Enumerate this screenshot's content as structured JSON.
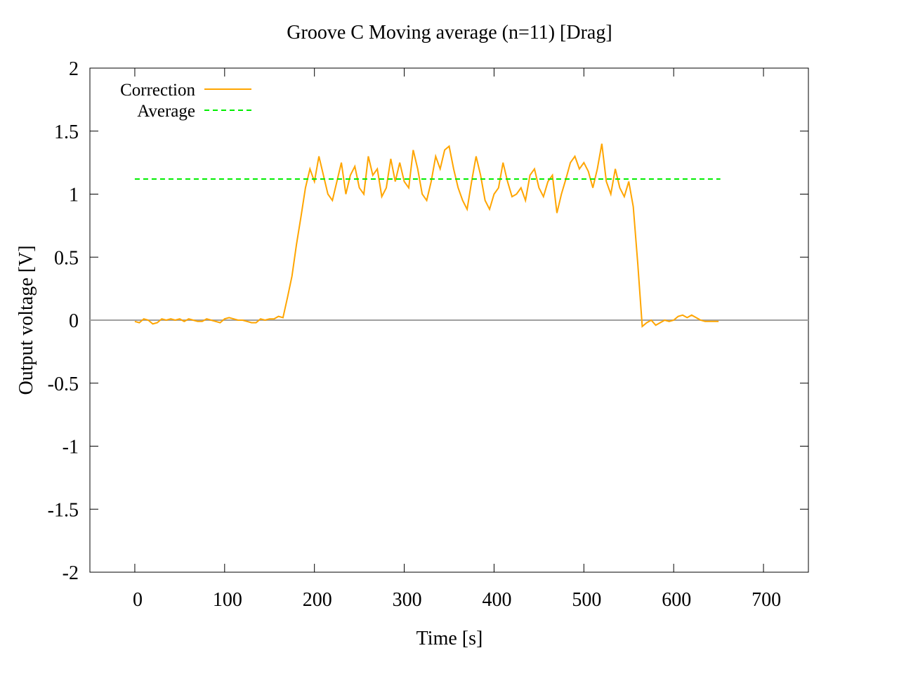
{
  "chart_data": {
    "type": "line",
    "title": "Groove C  Moving average (n=11) [Drag]",
    "xlabel": "Time [s]",
    "ylabel": "Output voltage [V]",
    "xlim": [
      -50,
      750
    ],
    "ylim": [
      -2,
      2
    ],
    "xticks": [
      0,
      100,
      200,
      300,
      400,
      500,
      600,
      700
    ],
    "yticks": [
      -2,
      -1.5,
      -1,
      -0.5,
      0,
      0.5,
      1,
      1.5,
      2
    ],
    "zeroaxis": true,
    "legend": "top-left",
    "series": [
      {
        "name": "Correction",
        "color": "#ffa500",
        "dash": false,
        "x": [
          0,
          5,
          10,
          15,
          20,
          25,
          30,
          35,
          40,
          45,
          50,
          55,
          60,
          65,
          70,
          75,
          80,
          85,
          90,
          95,
          100,
          105,
          110,
          115,
          120,
          125,
          130,
          135,
          140,
          145,
          150,
          155,
          160,
          165,
          170,
          175,
          180,
          185,
          190,
          195,
          200,
          205,
          210,
          215,
          220,
          225,
          230,
          235,
          240,
          245,
          250,
          255,
          260,
          265,
          270,
          275,
          280,
          285,
          290,
          295,
          300,
          305,
          310,
          315,
          320,
          325,
          330,
          335,
          340,
          345,
          350,
          355,
          360,
          365,
          370,
          375,
          380,
          385,
          390,
          395,
          400,
          405,
          410,
          415,
          420,
          425,
          430,
          435,
          440,
          445,
          450,
          455,
          460,
          465,
          470,
          475,
          480,
          485,
          490,
          495,
          500,
          505,
          510,
          515,
          520,
          525,
          530,
          535,
          540,
          545,
          550,
          555,
          560,
          565,
          570,
          575,
          580,
          585,
          590,
          595,
          600,
          605,
          610,
          615,
          620,
          625,
          630,
          635,
          640,
          645,
          650
        ],
        "values": [
          -0.01,
          -0.02,
          0.01,
          0,
          -0.03,
          -0.02,
          0.01,
          0,
          0.01,
          0,
          0.01,
          -0.01,
          0.01,
          0,
          -0.01,
          -0.01,
          0.01,
          0,
          -0.01,
          -0.02,
          0.01,
          0.02,
          0.01,
          0,
          0,
          -0.01,
          -0.02,
          -0.02,
          0.01,
          0,
          0.01,
          0.01,
          0.03,
          0.02,
          0.18,
          0.35,
          0.6,
          0.82,
          1.05,
          1.2,
          1.1,
          1.3,
          1.15,
          1.0,
          0.95,
          1.1,
          1.25,
          1.0,
          1.15,
          1.22,
          1.05,
          1.0,
          1.3,
          1.15,
          1.2,
          0.98,
          1.05,
          1.28,
          1.1,
          1.25,
          1.1,
          1.05,
          1.35,
          1.2,
          1.0,
          0.95,
          1.1,
          1.3,
          1.2,
          1.35,
          1.38,
          1.2,
          1.05,
          0.95,
          0.88,
          1.1,
          1.3,
          1.15,
          0.95,
          0.88,
          1.0,
          1.05,
          1.25,
          1.1,
          0.98,
          1.0,
          1.05,
          0.95,
          1.15,
          1.2,
          1.05,
          0.98,
          1.1,
          1.15,
          0.85,
          1.0,
          1.12,
          1.25,
          1.3,
          1.2,
          1.25,
          1.18,
          1.05,
          1.2,
          1.4,
          1.1,
          1.0,
          1.2,
          1.05,
          0.98,
          1.1,
          0.9,
          0.45,
          -0.05,
          -0.02,
          0,
          -0.04,
          -0.02,
          0,
          -0.01,
          0,
          0.03,
          0.04,
          0.02,
          0.04,
          0.02,
          0,
          -0.01,
          -0.01,
          -0.01,
          -0.01
        ]
      },
      {
        "name": "Average",
        "color": "#00ee00",
        "dash": true,
        "x": [
          0,
          652
        ],
        "values": [
          1.12,
          1.12
        ]
      }
    ]
  }
}
